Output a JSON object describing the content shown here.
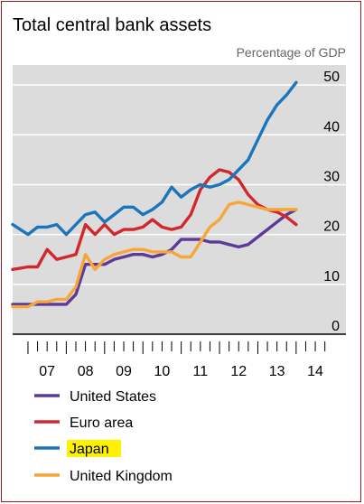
{
  "chart_data": {
    "type": "line",
    "title": "Total central bank assets",
    "ylabel": "Percentage of GDP",
    "xlabel": "",
    "ylim": [
      0,
      54
    ],
    "yticks": [
      0,
      10,
      20,
      30,
      40,
      50
    ],
    "ytick_labels": [
      "0",
      "10",
      "20",
      "30",
      "40",
      "50"
    ],
    "xlim": [
      2006.6,
      2015.3
    ],
    "xticks": [
      2007,
      2008,
      2009,
      2010,
      2011,
      2012,
      2013,
      2014
    ],
    "xtick_labels": [
      "07",
      "08",
      "09",
      "10",
      "11",
      "12",
      "13",
      "14"
    ],
    "grid": true,
    "legend_position": "bottom",
    "background_color": "#dcdcdc",
    "series": [
      {
        "name": "United States",
        "color": "#5c3a99",
        "x": [
          2006.6,
          2007.0,
          2007.25,
          2007.5,
          2007.75,
          2008.0,
          2008.25,
          2008.5,
          2008.75,
          2009.0,
          2009.25,
          2009.5,
          2009.75,
          2010.0,
          2010.25,
          2010.5,
          2010.75,
          2011.0,
          2011.25,
          2011.5,
          2011.75,
          2012.0,
          2012.25,
          2012.5,
          2012.75,
          2013.0,
          2013.25,
          2013.5,
          2013.75,
          2014.0
        ],
        "y": [
          6,
          6,
          6,
          6,
          6,
          6,
          8,
          14,
          14,
          14,
          15,
          15.5,
          16,
          16,
          15.5,
          16,
          17,
          19,
          19,
          19,
          18.5,
          18.5,
          18,
          17.5,
          18,
          19.5,
          21,
          22.5,
          24,
          25
        ]
      },
      {
        "name": "Euro area",
        "color": "#d1282e",
        "x": [
          2006.6,
          2007.0,
          2007.25,
          2007.5,
          2007.75,
          2008.0,
          2008.25,
          2008.5,
          2008.75,
          2009.0,
          2009.25,
          2009.5,
          2009.75,
          2010.0,
          2010.25,
          2010.5,
          2010.75,
          2011.0,
          2011.25,
          2011.5,
          2011.75,
          2012.0,
          2012.25,
          2012.5,
          2012.75,
          2013.0,
          2013.25,
          2013.5,
          2013.75,
          2014.0
        ],
        "y": [
          13,
          13.5,
          13.5,
          17,
          15,
          15.5,
          16,
          22,
          20,
          22,
          20,
          21,
          21,
          21.5,
          23,
          21.5,
          21,
          21.5,
          24,
          29,
          31.5,
          33,
          32.5,
          31,
          28,
          26,
          25,
          24.5,
          23.5,
          22
        ]
      },
      {
        "name": "Japan",
        "color": "#1b75bc",
        "x": [
          2006.6,
          2007.0,
          2007.25,
          2007.5,
          2007.75,
          2008.0,
          2008.25,
          2008.5,
          2008.75,
          2009.0,
          2009.25,
          2009.5,
          2009.75,
          2010.0,
          2010.25,
          2010.5,
          2010.75,
          2011.0,
          2011.25,
          2011.5,
          2011.75,
          2012.0,
          2012.25,
          2012.5,
          2012.75,
          2013.0,
          2013.25,
          2013.5,
          2013.75,
          2014.0
        ],
        "y": [
          22,
          20,
          21.5,
          21.5,
          22,
          20,
          22,
          24,
          24.5,
          22.5,
          24,
          25.5,
          25.5,
          24,
          25,
          26.5,
          29.5,
          27.5,
          29,
          30,
          29.5,
          30,
          31,
          33,
          35,
          39,
          43,
          46,
          48,
          50.5
        ]
      },
      {
        "name": "United Kingdom",
        "color": "#f7a637",
        "x": [
          2006.6,
          2007.0,
          2007.25,
          2007.5,
          2007.75,
          2008.0,
          2008.25,
          2008.5,
          2008.75,
          2009.0,
          2009.25,
          2009.5,
          2009.75,
          2010.0,
          2010.25,
          2010.5,
          2010.75,
          2011.0,
          2011.25,
          2011.5,
          2011.75,
          2012.0,
          2012.25,
          2012.5,
          2012.75,
          2013.0,
          2013.25,
          2013.5,
          2013.75,
          2014.0
        ],
        "y": [
          5.5,
          5.5,
          6.5,
          6.5,
          7,
          7,
          9.5,
          16,
          13,
          15,
          16,
          16.5,
          17,
          17,
          16.5,
          16.5,
          16.5,
          15.5,
          15.5,
          18.5,
          21.5,
          23,
          26,
          26.5,
          26,
          25.5,
          25,
          25,
          25,
          25
        ]
      }
    ]
  }
}
